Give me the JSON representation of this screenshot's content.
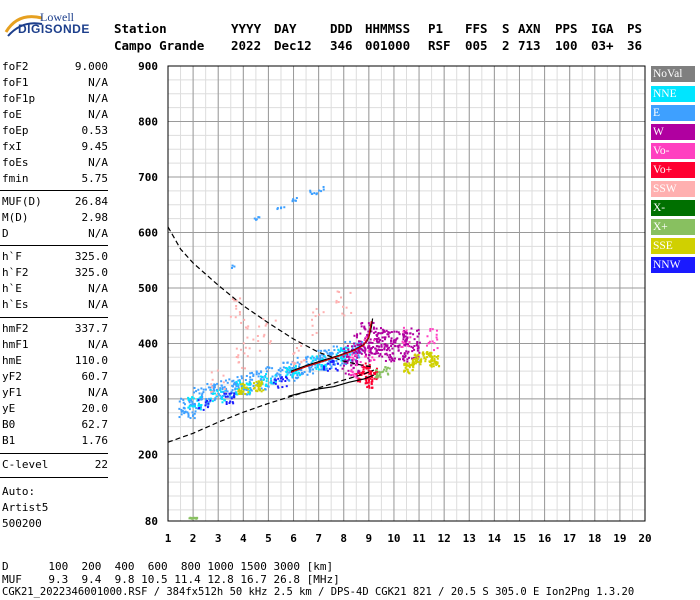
{
  "logo": {
    "line1": "Lowell",
    "line2": "DIGISONDE"
  },
  "header": {
    "labels": [
      "Station",
      "YYYY",
      "DAY",
      "DDD",
      "HHMMSS",
      "P1",
      "FFS",
      "S",
      "AXN",
      "PPS",
      "IGA",
      "PS"
    ],
    "values": [
      "Campo Grande",
      "2022",
      "Dec12",
      "346",
      "001000",
      "RSF",
      "005",
      "2",
      "713",
      "100",
      "03+",
      "36"
    ]
  },
  "params": [
    {
      "key": "foF2",
      "value": "9.000"
    },
    {
      "key": "foF1",
      "value": "N/A"
    },
    {
      "key": "foF1p",
      "value": "N/A"
    },
    {
      "key": "foE",
      "value": "N/A"
    },
    {
      "key": "foEp",
      "value": "0.53"
    },
    {
      "key": "fxI",
      "value": "9.45"
    },
    {
      "key": "foEs",
      "value": "N/A"
    },
    {
      "key": "fmin",
      "value": "5.75"
    },
    {
      "key": "MUF(D)",
      "value": "26.84"
    },
    {
      "key": "M(D)",
      "value": "2.98"
    },
    {
      "key": "D",
      "value": "N/A"
    },
    {
      "key": "h`F",
      "value": "325.0"
    },
    {
      "key": "h`F2",
      "value": "325.0"
    },
    {
      "key": "h`E",
      "value": "N/A"
    },
    {
      "key": "h`Es",
      "value": "N/A"
    },
    {
      "key": "hmF2",
      "value": "337.7"
    },
    {
      "key": "hmF1",
      "value": "N/A"
    },
    {
      "key": "hmE",
      "value": "110.0"
    },
    {
      "key": "yF2",
      "value": "60.7"
    },
    {
      "key": "yF1",
      "value": "N/A"
    },
    {
      "key": "yE",
      "value": "20.0"
    },
    {
      "key": "B0",
      "value": "62.7"
    },
    {
      "key": "B1",
      "value": "1.76"
    },
    {
      "key": "C-level",
      "value": "22"
    }
  ],
  "auto": {
    "line1": "Auto:",
    "line2": "Artist5",
    "line3": "500200"
  },
  "legend": [
    {
      "label": "NoVal",
      "color": "#7f7f7f"
    },
    {
      "label": "NNE",
      "color": "#00e5ff"
    },
    {
      "label": "E",
      "color": "#3ea0ff"
    },
    {
      "label": "W",
      "color": "#b000a0"
    },
    {
      "label": "Vo-",
      "color": "#ff40c0"
    },
    {
      "label": "Vo+",
      "color": "#ff0030"
    },
    {
      "label": "SSW",
      "color": "#ffb0b0"
    },
    {
      "label": "X-",
      "color": "#007000"
    },
    {
      "label": "X+",
      "color": "#88c060"
    },
    {
      "label": "SSE",
      "color": "#d0d000"
    },
    {
      "label": "NNW",
      "color": "#1a1aff"
    }
  ],
  "footer": {
    "row_d_label": "D",
    "row_d_values": "100  200  400  600  800 1000 1500 3000 [km]",
    "row_muf_label": "MUF",
    "row_muf_values": "9.3  9.4  9.8 10.5 11.4 12.8 16.7 26.8 [MHz]",
    "file_line": "CGK21_2022346001000.RSF / 384fx512h 50 kHz 2.5 km / DPS-4D CGK21 821 / 20.5 S 305.0 E Ion2Png 1.3.20"
  },
  "chart_data": {
    "type": "scatter",
    "xlim": [
      1,
      20
    ],
    "ylim": [
      80,
      900
    ],
    "xticks": [
      1,
      2,
      3,
      4,
      5,
      6,
      7,
      8,
      9,
      10,
      11,
      12,
      13,
      14,
      15,
      16,
      17,
      18,
      19,
      20
    ],
    "yticks": [
      80,
      200,
      300,
      400,
      500,
      600,
      700,
      800,
      900
    ],
    "grid": true,
    "x_minor_step": 0.5,
    "y_minor_step": 25,
    "series": [
      {
        "points": [
          [
            1.8,
            283
          ],
          [
            2.3,
            302
          ],
          [
            2.9,
            310
          ],
          [
            3.4,
            318
          ],
          [
            4.0,
            325
          ],
          [
            4.6,
            333
          ],
          [
            5.2,
            340
          ],
          [
            5.9,
            350
          ],
          [
            6.5,
            360
          ],
          [
            7.2,
            370
          ],
          [
            7.8,
            378
          ],
          [
            8.4,
            386
          ]
        ],
        "spread_x": 0.35,
        "spread_y": 18,
        "n": 420,
        "color": "#3ea0ff"
      },
      {
        "points": [
          [
            2.1,
            292
          ],
          [
            3.0,
            305
          ],
          [
            4.0,
            320
          ],
          [
            5.0,
            335
          ],
          [
            6.0,
            350
          ],
          [
            7.0,
            365
          ],
          [
            8.0,
            380
          ]
        ],
        "spread_x": 0.3,
        "spread_y": 12,
        "n": 160,
        "color": "#00e5ff"
      },
      {
        "points": [
          [
            8.3,
            370
          ],
          [
            8.7,
            390
          ],
          [
            9.0,
            410
          ],
          [
            9.3,
            400
          ],
          [
            9.7,
            395
          ],
          [
            10.2,
            395
          ],
          [
            10.7,
            400
          ]
        ],
        "spread_x": 0.35,
        "spread_y": 28,
        "n": 320,
        "color": "#b000a0"
      },
      {
        "points": [
          [
            8.6,
            340
          ],
          [
            9.0,
            330
          ],
          [
            8.9,
            355
          ],
          [
            9.2,
            345
          ]
        ],
        "spread_x": 0.15,
        "spread_y": 10,
        "n": 80,
        "color": "#ff0030"
      },
      {
        "points": [
          [
            9.0,
            390
          ],
          [
            10.5,
            410
          ],
          [
            11.5,
            405
          ],
          [
            8.5,
            360
          ]
        ],
        "spread_x": 0.25,
        "spread_y": 22,
        "n": 60,
        "color": "#ff40c0"
      },
      {
        "points": [
          [
            10.9,
            370
          ],
          [
            11.3,
            375
          ],
          [
            11.6,
            368
          ],
          [
            10.6,
            355
          ],
          [
            4.0,
            318
          ],
          [
            4.6,
            322
          ]
        ],
        "spread_x": 0.2,
        "spread_y": 10,
        "n": 180,
        "color": "#d0d000"
      },
      {
        "points": [
          [
            3.0,
            330
          ],
          [
            4.0,
            380
          ],
          [
            3.8,
            460
          ],
          [
            4.4,
            410
          ],
          [
            5.0,
            420
          ],
          [
            6.2,
            380
          ],
          [
            8.0,
            470
          ],
          [
            7.0,
            440
          ]
        ],
        "spread_x": 0.3,
        "spread_y": 25,
        "n": 90,
        "color": "#ffb0b0"
      },
      {
        "points": [
          [
            2.5,
            290
          ],
          [
            3.5,
            300
          ],
          [
            5.5,
            330
          ],
          [
            7.5,
            360
          ]
        ],
        "spread_x": 0.3,
        "spread_y": 10,
        "n": 60,
        "color": "#1a1aff"
      },
      {
        "points": [
          [
            9.4,
            345
          ],
          [
            9.7,
            350
          ]
        ],
        "spread_x": 0.15,
        "spread_y": 8,
        "n": 25,
        "color": "#88c060"
      },
      {
        "points": [
          [
            1.9,
            85
          ],
          [
            2.1,
            85
          ]
        ],
        "spread_x": 0.08,
        "spread_y": 1,
        "n": 18,
        "color": "#88c060"
      },
      {
        "points": [
          [
            4.6,
            625
          ],
          [
            5.5,
            645
          ],
          [
            6.0,
            660
          ],
          [
            6.8,
            672
          ],
          [
            7.1,
            678
          ],
          [
            3.5,
            540
          ]
        ],
        "spread_x": 0.15,
        "spread_y": 4,
        "n": 30,
        "color": "#3ea0ff"
      }
    ],
    "curves": [
      {
        "style": "dashed",
        "color": "#000000",
        "points": [
          [
            1.0,
            610
          ],
          [
            1.5,
            570
          ],
          [
            2.0,
            545
          ],
          [
            3.0,
            505
          ],
          [
            4.0,
            468
          ],
          [
            5.0,
            437
          ],
          [
            6.0,
            408
          ],
          [
            7.0,
            384
          ],
          [
            8.0,
            368
          ],
          [
            8.8,
            360
          ],
          [
            9.1,
            358
          ]
        ]
      },
      {
        "style": "dashed",
        "color": "#000000",
        "points": [
          [
            1.0,
            222
          ],
          [
            2.0,
            238
          ],
          [
            3.0,
            258
          ],
          [
            4.0,
            276
          ],
          [
            5.0,
            292
          ],
          [
            6.0,
            306
          ],
          [
            7.0,
            320
          ],
          [
            8.0,
            334
          ],
          [
            8.8,
            345
          ],
          [
            9.2,
            352
          ]
        ]
      },
      {
        "style": "solid",
        "color": "#000000",
        "points": [
          [
            5.8,
            305
          ],
          [
            6.4,
            312
          ],
          [
            7.0,
            318
          ],
          [
            7.6,
            322
          ],
          [
            8.2,
            330
          ],
          [
            8.8,
            336
          ],
          [
            9.2,
            343
          ]
        ]
      },
      {
        "style": "solid",
        "color": "#000000",
        "points": [
          [
            5.9,
            350
          ],
          [
            6.5,
            360
          ],
          [
            7.2,
            370
          ],
          [
            7.8,
            378
          ],
          [
            8.4,
            388
          ],
          [
            8.8,
            398
          ],
          [
            9.0,
            410
          ],
          [
            9.1,
            430
          ],
          [
            9.15,
            445
          ]
        ]
      },
      {
        "style": "solid",
        "color": "#cc0000",
        "points": [
          [
            5.9,
            348
          ],
          [
            6.5,
            358
          ],
          [
            7.2,
            368
          ],
          [
            7.8,
            377
          ],
          [
            8.4,
            387
          ],
          [
            8.8,
            397
          ],
          [
            9.0,
            412
          ],
          [
            9.1,
            440
          ]
        ]
      }
    ]
  }
}
